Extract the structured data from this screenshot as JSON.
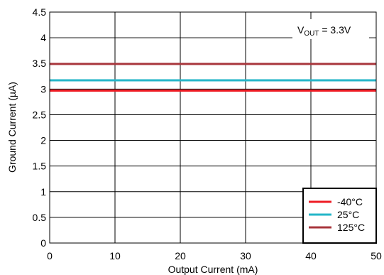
{
  "chart_data": {
    "type": "line",
    "title": "",
    "xlabel": "Output Current (mA)",
    "ylabel": "Ground Current (µA)",
    "xlim": [
      0,
      50
    ],
    "ylim": [
      0,
      4.5
    ],
    "x_ticks": [
      0,
      10,
      20,
      30,
      40,
      50
    ],
    "y_ticks": [
      0,
      0.5,
      1,
      1.5,
      2,
      2.5,
      3,
      3.5,
      4,
      4.5
    ],
    "x_tick_labels": [
      "0",
      "10",
      "20",
      "30",
      "40",
      "50"
    ],
    "y_tick_labels": [
      "0",
      "0.5",
      "1",
      "1.5",
      "2",
      "2.5",
      "3",
      "3.5",
      "4",
      "4.5"
    ],
    "grid": true,
    "legend_position": "bottom-right",
    "annotation": {
      "main": "V",
      "subscript": "OUT",
      "rest": " = 3.3V"
    },
    "series": [
      {
        "name": "-40°C",
        "color": "#ee1c24",
        "x": [
          0,
          50
        ],
        "y": [
          2.97,
          2.97
        ]
      },
      {
        "name": "25°C",
        "color": "#25b6c8",
        "x": [
          0,
          50
        ],
        "y": [
          3.17,
          3.17
        ]
      },
      {
        "name": "125°C",
        "color": "#a8363c",
        "x": [
          0,
          50
        ],
        "y": [
          3.49,
          3.49
        ]
      }
    ]
  }
}
